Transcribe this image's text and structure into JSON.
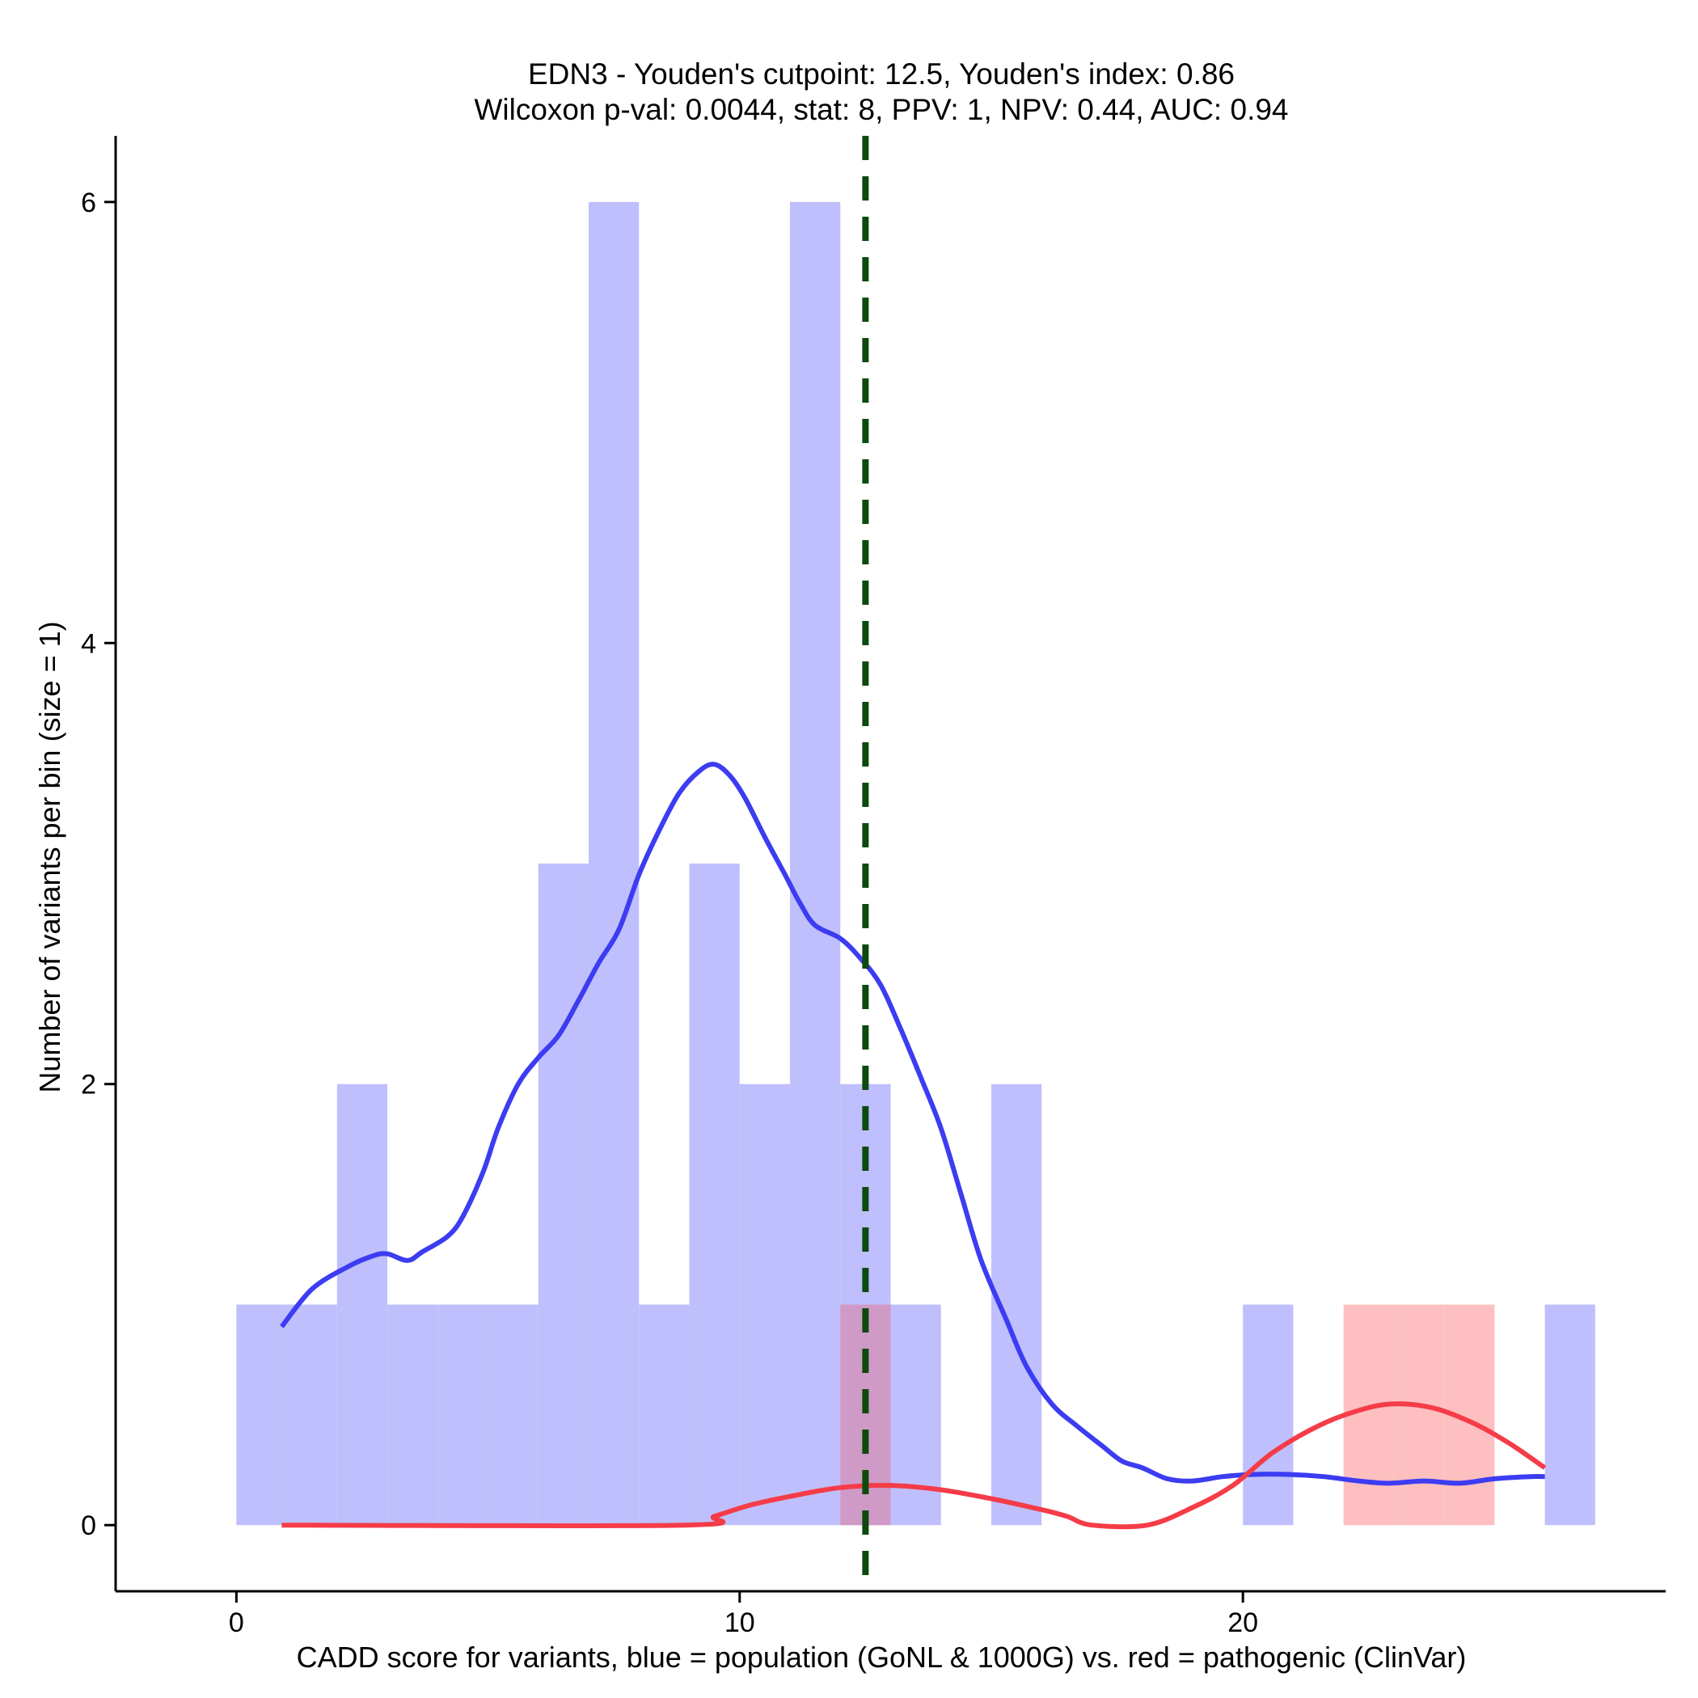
{
  "chart_data": {
    "type": "bar",
    "title": "EDN3 - Youden's cutpoint: 12.5, Youden's index: 0.86",
    "subtitle": "Wilcoxon p-val: 0.0044, stat: 8, PPV: 1, NPV: 0.44, AUC: 0.94",
    "xlabel": "CADD score for variants, blue = population (GoNL & 1000G) vs. red = pathogenic (ClinVar)",
    "ylabel": "Number of variants per bin (size = 1)",
    "xlim": [
      -2.4,
      28.4
    ],
    "ylim": [
      -0.3,
      6.3
    ],
    "x_ticks": [
      0,
      10,
      20
    ],
    "x_tick_labels": [
      "0",
      "10",
      "20"
    ],
    "y_ticks": [
      0,
      2,
      4,
      6
    ],
    "y_tick_labels": [
      "0",
      "2",
      "4",
      "6"
    ],
    "cutpoint": 12.5,
    "bin_size": 1,
    "colors": {
      "population_bar": "#bfbffd",
      "pathogenic_bar": "#fdbfbf",
      "overlap_bar": "#cf9ac5",
      "population_line": "#3c3cf2",
      "pathogenic_line": "#f53c48",
      "cutpoint_line": "#0d4a0d",
      "axis": "#000000"
    },
    "series": [
      {
        "name": "population (GoNL & 1000G)",
        "bins": [
          {
            "x0": 0,
            "x1": 1,
            "count": 1
          },
          {
            "x0": 1,
            "x1": 2,
            "count": 1
          },
          {
            "x0": 2,
            "x1": 3,
            "count": 2
          },
          {
            "x0": 3,
            "x1": 4,
            "count": 1
          },
          {
            "x0": 4,
            "x1": 5,
            "count": 1
          },
          {
            "x0": 5,
            "x1": 6,
            "count": 1
          },
          {
            "x0": 6,
            "x1": 7,
            "count": 3
          },
          {
            "x0": 7,
            "x1": 8,
            "count": 6
          },
          {
            "x0": 8,
            "x1": 9,
            "count": 1
          },
          {
            "x0": 9,
            "x1": 10,
            "count": 3
          },
          {
            "x0": 10,
            "x1": 11,
            "count": 2
          },
          {
            "x0": 11,
            "x1": 12,
            "count": 6
          },
          {
            "x0": 12,
            "x1": 13,
            "count": 2
          },
          {
            "x0": 13,
            "x1": 14,
            "count": 1
          },
          {
            "x0": 15,
            "x1": 16,
            "count": 2
          },
          {
            "x0": 20,
            "x1": 21,
            "count": 1
          },
          {
            "x0": 26,
            "x1": 27,
            "count": 1
          }
        ],
        "density": [
          [
            0.9,
            0.9
          ],
          [
            1.5,
            1.07
          ],
          [
            2.2,
            1.17
          ],
          [
            2.7,
            1.22
          ],
          [
            3.0,
            1.23
          ],
          [
            3.4,
            1.2
          ],
          [
            3.7,
            1.24
          ],
          [
            4.2,
            1.31
          ],
          [
            4.5,
            1.4
          ],
          [
            4.9,
            1.6
          ],
          [
            5.2,
            1.8
          ],
          [
            5.6,
            2.0
          ],
          [
            6.0,
            2.12
          ],
          [
            6.4,
            2.22
          ],
          [
            6.8,
            2.38
          ],
          [
            7.2,
            2.55
          ],
          [
            7.6,
            2.7
          ],
          [
            8.0,
            2.95
          ],
          [
            8.4,
            3.15
          ],
          [
            8.8,
            3.32
          ],
          [
            9.2,
            3.42
          ],
          [
            9.5,
            3.45
          ],
          [
            9.8,
            3.4
          ],
          [
            10.1,
            3.3
          ],
          [
            10.5,
            3.12
          ],
          [
            10.9,
            2.95
          ],
          [
            11.2,
            2.82
          ],
          [
            11.5,
            2.72
          ],
          [
            12.0,
            2.66
          ],
          [
            12.4,
            2.57
          ],
          [
            12.8,
            2.45
          ],
          [
            13.2,
            2.25
          ],
          [
            13.6,
            2.03
          ],
          [
            14.0,
            1.8
          ],
          [
            14.4,
            1.5
          ],
          [
            14.8,
            1.2
          ],
          [
            15.3,
            0.93
          ],
          [
            15.7,
            0.72
          ],
          [
            16.2,
            0.55
          ],
          [
            16.7,
            0.45
          ],
          [
            17.2,
            0.36
          ],
          [
            17.6,
            0.29
          ],
          [
            18.0,
            0.26
          ],
          [
            18.5,
            0.21
          ],
          [
            19.0,
            0.2
          ],
          [
            19.6,
            0.22
          ],
          [
            20.2,
            0.23
          ],
          [
            20.9,
            0.23
          ],
          [
            21.6,
            0.22
          ],
          [
            22.3,
            0.2
          ],
          [
            22.9,
            0.19
          ],
          [
            23.6,
            0.2
          ],
          [
            24.3,
            0.19
          ],
          [
            25.0,
            0.21
          ],
          [
            25.7,
            0.22
          ],
          [
            26.0,
            0.22
          ]
        ]
      },
      {
        "name": "pathogenic (ClinVar)",
        "bins": [
          {
            "x0": 12,
            "x1": 13,
            "count": 1
          },
          {
            "x0": 22,
            "x1": 23,
            "count": 1
          },
          {
            "x0": 23,
            "x1": 24,
            "count": 1
          },
          {
            "x0": 24,
            "x1": 25,
            "count": 1
          }
        ],
        "density": [
          [
            0.9,
            0.0
          ],
          [
            8.9,
            0.0
          ],
          [
            9.5,
            0.04
          ],
          [
            10.2,
            0.09
          ],
          [
            11.0,
            0.13
          ],
          [
            12.0,
            0.17
          ],
          [
            13.0,
            0.18
          ],
          [
            14.0,
            0.16
          ],
          [
            15.0,
            0.12
          ],
          [
            16.0,
            0.07
          ],
          [
            16.5,
            0.04
          ],
          [
            17.0,
            0.0
          ],
          [
            18.1,
            0.0
          ],
          [
            19.0,
            0.08
          ],
          [
            19.8,
            0.18
          ],
          [
            20.6,
            0.33
          ],
          [
            21.5,
            0.45
          ],
          [
            22.3,
            0.52
          ],
          [
            23.0,
            0.55
          ],
          [
            23.8,
            0.53
          ],
          [
            24.6,
            0.46
          ],
          [
            25.3,
            0.37
          ],
          [
            26.0,
            0.26
          ]
        ]
      }
    ]
  }
}
